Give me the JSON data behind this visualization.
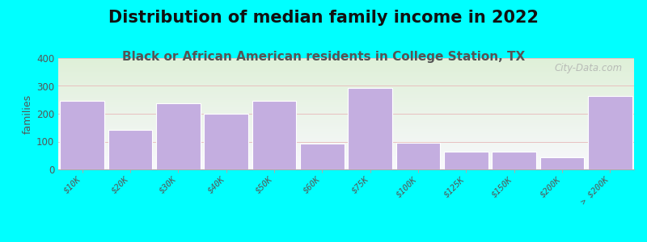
{
  "title": "Distribution of median family income in 2022",
  "subtitle": "Black or African American residents in College Station, TX",
  "ylabel": "families",
  "categories": [
    "$10K",
    "$20K",
    "$30K",
    "$40K",
    "$50K",
    "$60K",
    "$75K",
    "$100K",
    "$125K",
    "$150K",
    "$200K",
    "> $200K"
  ],
  "values": [
    245,
    143,
    238,
    200,
    247,
    94,
    293,
    97,
    63,
    63,
    43,
    265
  ],
  "bar_color": "#c4aee0",
  "bar_edge_color": "#b09ccc",
  "background_outer": "#00ffff",
  "background_plot_top": "#dff0d8",
  "background_plot_bottom": "#f5f0f8",
  "ylim": [
    0,
    400
  ],
  "yticks": [
    0,
    100,
    200,
    300,
    400
  ],
  "grid_color": "#e8c0c0",
  "watermark": "City-Data.com",
  "title_fontsize": 15,
  "subtitle_fontsize": 11,
  "subtitle_color": "#555555",
  "ylabel_fontsize": 9
}
